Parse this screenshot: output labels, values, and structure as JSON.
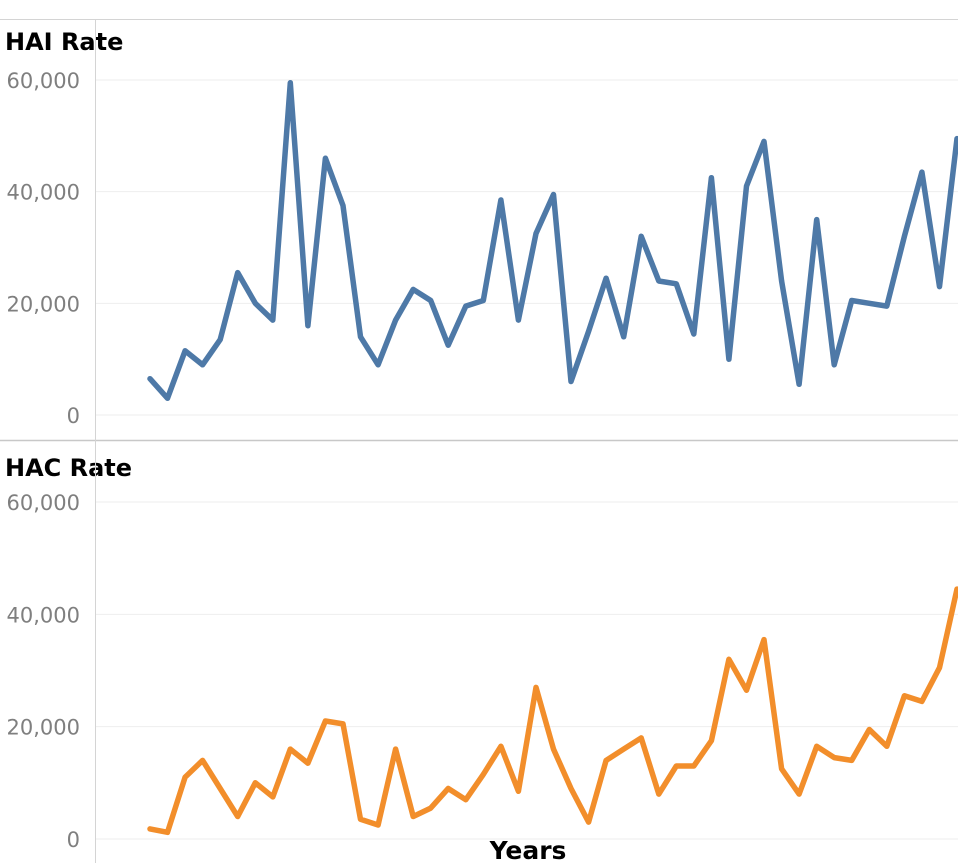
{
  "chart_data": [
    {
      "type": "line",
      "title": "HAI Rate",
      "xlabel": "",
      "ylabel": "",
      "ylim": [
        0,
        60000
      ],
      "yticks": [
        0,
        20000,
        40000,
        60000
      ],
      "ytick_labels": [
        "0",
        "20,000",
        "40,000",
        "60,000"
      ],
      "grid": true,
      "color": "#4e79a7",
      "values": [
        6500,
        3000,
        11500,
        9000,
        13500,
        25500,
        20000,
        17000,
        59500,
        16000,
        46000,
        37500,
        14000,
        9000,
        17000,
        22500,
        20500,
        12500,
        19500,
        20500,
        38500,
        17000,
        32500,
        39500,
        6000,
        15000,
        24500,
        14000,
        32000,
        24000,
        23500,
        14500,
        42500,
        10000,
        41000,
        49000,
        24000,
        5500,
        35000,
        9000,
        20500,
        20000,
        19500,
        32000,
        43500,
        23000,
        49500
      ]
    },
    {
      "type": "line",
      "title": "HAC Rate",
      "xlabel": "Years",
      "ylabel": "",
      "ylim": [
        0,
        60000
      ],
      "yticks": [
        0,
        20000,
        40000,
        60000
      ],
      "ytick_labels": [
        "0",
        "20,000",
        "40,000",
        "60,000"
      ],
      "grid": true,
      "color": "#f28e2b",
      "values": [
        1800,
        1200,
        11000,
        14000,
        9000,
        4000,
        10000,
        7500,
        16000,
        13500,
        21000,
        20500,
        3500,
        2500,
        16000,
        4000,
        5500,
        9000,
        7000,
        11500,
        16500,
        8500,
        27000,
        16000,
        9000,
        3000,
        14000,
        16000,
        18000,
        8000,
        13000,
        13000,
        17500,
        32000,
        26500,
        35500,
        12500,
        8000,
        16500,
        14500,
        14000,
        19500,
        16500,
        25500,
        24500,
        30500,
        44500
      ]
    }
  ]
}
